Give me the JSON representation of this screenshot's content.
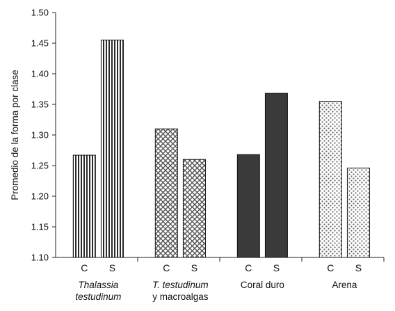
{
  "chart_data": {
    "type": "bar",
    "ylabel": "Promedio de la forma por clase",
    "ylim": [
      1.1,
      1.5
    ],
    "yticks": [
      "1.10",
      "1.15",
      "1.20",
      "1.25",
      "1.30",
      "1.35",
      "1.40",
      "1.45",
      "1.50"
    ],
    "grid": false,
    "legend": "none",
    "groups": [
      {
        "label_lines": [
          "Thalassia",
          "testudinum"
        ],
        "italic_lines": [
          true,
          true
        ],
        "pattern": "vertical-stripes",
        "bars": [
          {
            "category": "C",
            "value": 1.267
          },
          {
            "category": "S",
            "value": 1.455
          }
        ]
      },
      {
        "label_lines": [
          "T. testudinum",
          "y macroalgas"
        ],
        "italic_lines": [
          true,
          false
        ],
        "pattern": "crosshatch",
        "bars": [
          {
            "category": "C",
            "value": 1.31
          },
          {
            "category": "S",
            "value": 1.26
          }
        ]
      },
      {
        "label_lines": [
          "Coral duro"
        ],
        "italic_lines": [
          false
        ],
        "pattern": "solid-dark",
        "bars": [
          {
            "category": "C",
            "value": 1.268
          },
          {
            "category": "S",
            "value": 1.368
          }
        ]
      },
      {
        "label_lines": [
          "Arena"
        ],
        "italic_lines": [
          false
        ],
        "pattern": "stipple",
        "bars": [
          {
            "category": "C",
            "value": 1.355
          },
          {
            "category": "S",
            "value": 1.246
          }
        ]
      }
    ],
    "colors": {
      "axis": "#222222",
      "bar_dark": "#3a3a3a",
      "stripe": "#2a2a2a",
      "hatch": "#555555",
      "stipple": "#666666"
    }
  }
}
